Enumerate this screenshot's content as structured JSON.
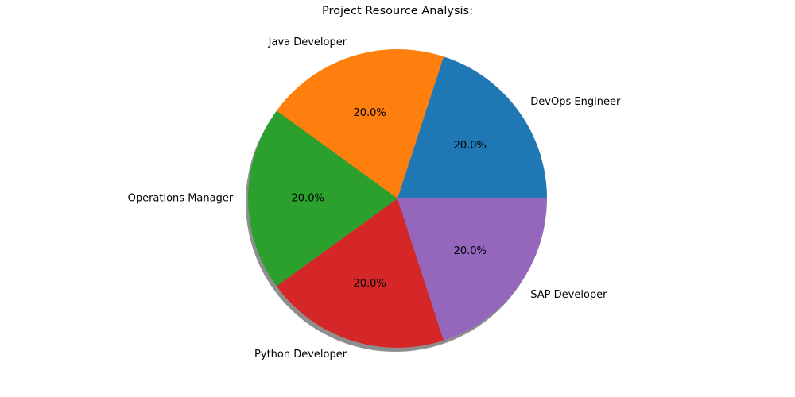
{
  "chart_data": {
    "type": "pie",
    "title": "Project Resource Analysis:",
    "categories": [
      "DevOps Engineer",
      "Java Developer",
      "Operations Manager",
      "Python Developer",
      "SAP Developer"
    ],
    "values": [
      20.0,
      20.0,
      20.0,
      20.0,
      20.0
    ],
    "percent_labels": [
      "20.0%",
      "20.0%",
      "20.0%",
      "20.0%",
      "20.0%"
    ],
    "colors": [
      "#1f77b4",
      "#ff7f0e",
      "#2ca02c",
      "#d62728",
      "#9467bd"
    ],
    "start_angle_deg": 0,
    "direction": "counterclockwise",
    "shadow": true,
    "legend": "none"
  }
}
